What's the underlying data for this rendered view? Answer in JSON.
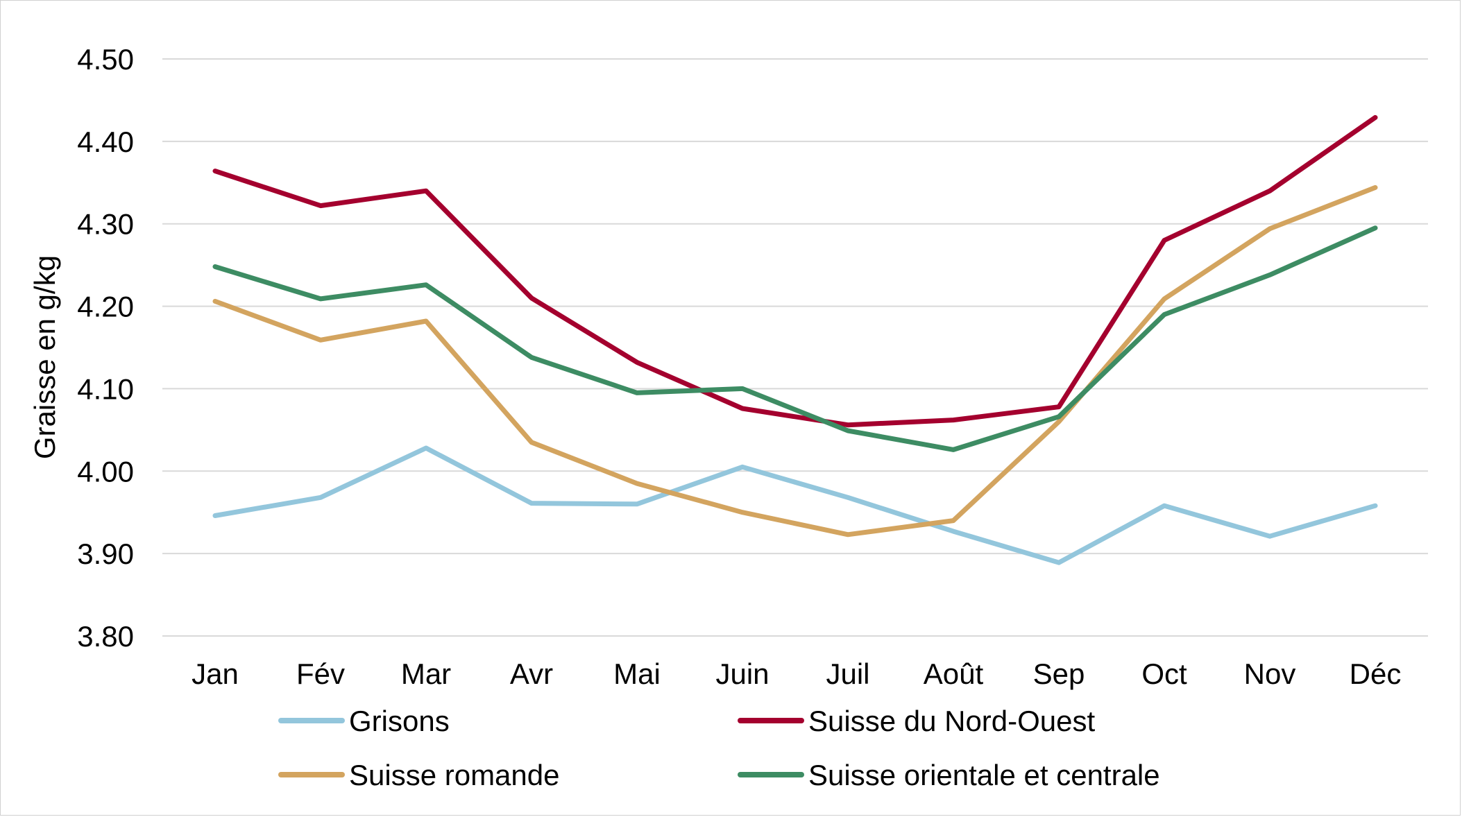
{
  "chart_data": {
    "type": "line",
    "title": "",
    "xlabel": "",
    "ylabel": "Graisse en g/kg",
    "categories": [
      "Jan",
      "Fév",
      "Mar",
      "Avr",
      "Mai",
      "Juin",
      "Juil",
      "Août",
      "Sep",
      "Oct",
      "Nov",
      "Déc"
    ],
    "ylim": [
      3.8,
      4.5
    ],
    "yticks": [
      3.8,
      3.9,
      4.0,
      4.1,
      4.2,
      4.3,
      4.4,
      4.5
    ],
    "ytick_labels": [
      "3.80",
      "3.90",
      "4.00",
      "4.10",
      "4.20",
      "4.30",
      "4.40",
      "4.50"
    ],
    "grid": true,
    "legend_position": "bottom",
    "series": [
      {
        "name": "Grisons",
        "color": "#93c6dc",
        "values": [
          3.946,
          3.968,
          4.028,
          3.961,
          3.96,
          4.005,
          3.968,
          3.927,
          3.889,
          3.958,
          3.921,
          3.958
        ]
      },
      {
        "name": "Suisse du Nord-Ouest",
        "color": "#a4002e",
        "values": [
          4.364,
          4.322,
          4.34,
          4.21,
          4.132,
          4.076,
          4.056,
          4.062,
          4.078,
          4.28,
          4.34,
          4.429
        ]
      },
      {
        "name": "Suisse romande",
        "color": "#d3a45f",
        "values": [
          4.206,
          4.159,
          4.182,
          4.035,
          3.985,
          3.95,
          3.923,
          3.94,
          4.06,
          4.209,
          4.294,
          4.344
        ]
      },
      {
        "name": "Suisse orientale et centrale",
        "color": "#3d8c63",
        "values": [
          4.248,
          4.209,
          4.226,
          4.138,
          4.095,
          4.1,
          4.049,
          4.026,
          4.066,
          4.19,
          4.238,
          4.295
        ]
      }
    ]
  }
}
